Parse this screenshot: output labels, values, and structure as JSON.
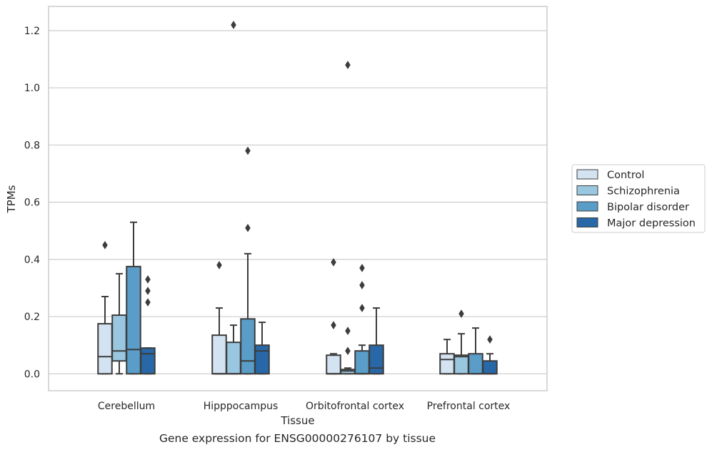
{
  "caption": "Gene expression for ENSG00000276107 by tissue",
  "chart_data": {
    "type": "box",
    "xlabel": "Tissue",
    "ylabel": "TPMs",
    "ylim": [
      -0.06,
      1.28
    ],
    "yticks": [
      0.0,
      0.2,
      0.4,
      0.6,
      0.8,
      1.0,
      1.2
    ],
    "ytick_labels": [
      "0.0",
      "0.2",
      "0.4",
      "0.6",
      "0.8",
      "1.0",
      "1.2"
    ],
    "grid": "horizontal",
    "legend_position": "right, outside plot",
    "categories": [
      "Cerebellum",
      "Hipppocampus",
      "Orbitofrontal cortex",
      "Prefrontal cortex"
    ],
    "series": [
      {
        "name": "Control",
        "color": "#d4e3f2",
        "boxes": [
          {
            "min": 0.0,
            "q1": 0.0,
            "median": 0.06,
            "q3": 0.175,
            "max": 0.27,
            "outliers": [
              0.45
            ]
          },
          {
            "min": 0.0,
            "q1": 0.0,
            "median": 0.0,
            "q3": 0.135,
            "max": 0.23,
            "outliers": [
              0.38
            ]
          },
          {
            "min": 0.0,
            "q1": 0.0,
            "median": 0.0,
            "q3": 0.065,
            "max": 0.07,
            "outliers": [
              0.17,
              0.39
            ]
          },
          {
            "min": 0.0,
            "q1": 0.0,
            "median": 0.05,
            "q3": 0.07,
            "max": 0.12,
            "outliers": []
          }
        ]
      },
      {
        "name": "Schizophrenia",
        "color": "#9ac7e0",
        "boxes": [
          {
            "min": 0.0,
            "q1": 0.045,
            "median": 0.08,
            "q3": 0.205,
            "max": 0.35,
            "outliers": []
          },
          {
            "min": 0.0,
            "q1": 0.0,
            "median": 0.0,
            "q3": 0.11,
            "max": 0.17,
            "outliers": [
              1.22
            ]
          },
          {
            "min": 0.0,
            "q1": 0.0,
            "median": 0.01,
            "q3": 0.015,
            "max": 0.02,
            "outliers": [
              0.08,
              0.15,
              1.08
            ]
          },
          {
            "min": 0.0,
            "q1": 0.0,
            "median": 0.06,
            "q3": 0.065,
            "max": 0.14,
            "outliers": [
              0.21
            ]
          }
        ]
      },
      {
        "name": "Bipolar disorder",
        "color": "#5a9dc8",
        "boxes": [
          {
            "min": 0.0,
            "q1": 0.0,
            "median": 0.085,
            "q3": 0.375,
            "max": 0.53,
            "outliers": []
          },
          {
            "min": 0.0,
            "q1": 0.0,
            "median": 0.045,
            "q3": 0.192,
            "max": 0.42,
            "outliers": [
              0.51,
              0.78
            ]
          },
          {
            "min": 0.0,
            "q1": 0.0,
            "median": 0.0,
            "q3": 0.08,
            "max": 0.1,
            "outliers": [
              0.23,
              0.31,
              0.37
            ]
          },
          {
            "min": 0.0,
            "q1": 0.0,
            "median": 0.0,
            "q3": 0.07,
            "max": 0.16,
            "outliers": []
          }
        ]
      },
      {
        "name": "Major depression",
        "color": "#2868a8",
        "boxes": [
          {
            "min": 0.0,
            "q1": 0.0,
            "median": 0.07,
            "q3": 0.09,
            "max": 0.09,
            "outliers": [
              0.25,
              0.29,
              0.33
            ]
          },
          {
            "min": 0.0,
            "q1": 0.0,
            "median": 0.08,
            "q3": 0.1,
            "max": 0.18,
            "outliers": []
          },
          {
            "min": 0.0,
            "q1": 0.0,
            "median": 0.02,
            "q3": 0.1,
            "max": 0.23,
            "outliers": []
          },
          {
            "min": 0.0,
            "q1": 0.0,
            "median": 0.0,
            "q3": 0.045,
            "max": 0.07,
            "outliers": [
              0.12
            ]
          }
        ]
      }
    ]
  }
}
